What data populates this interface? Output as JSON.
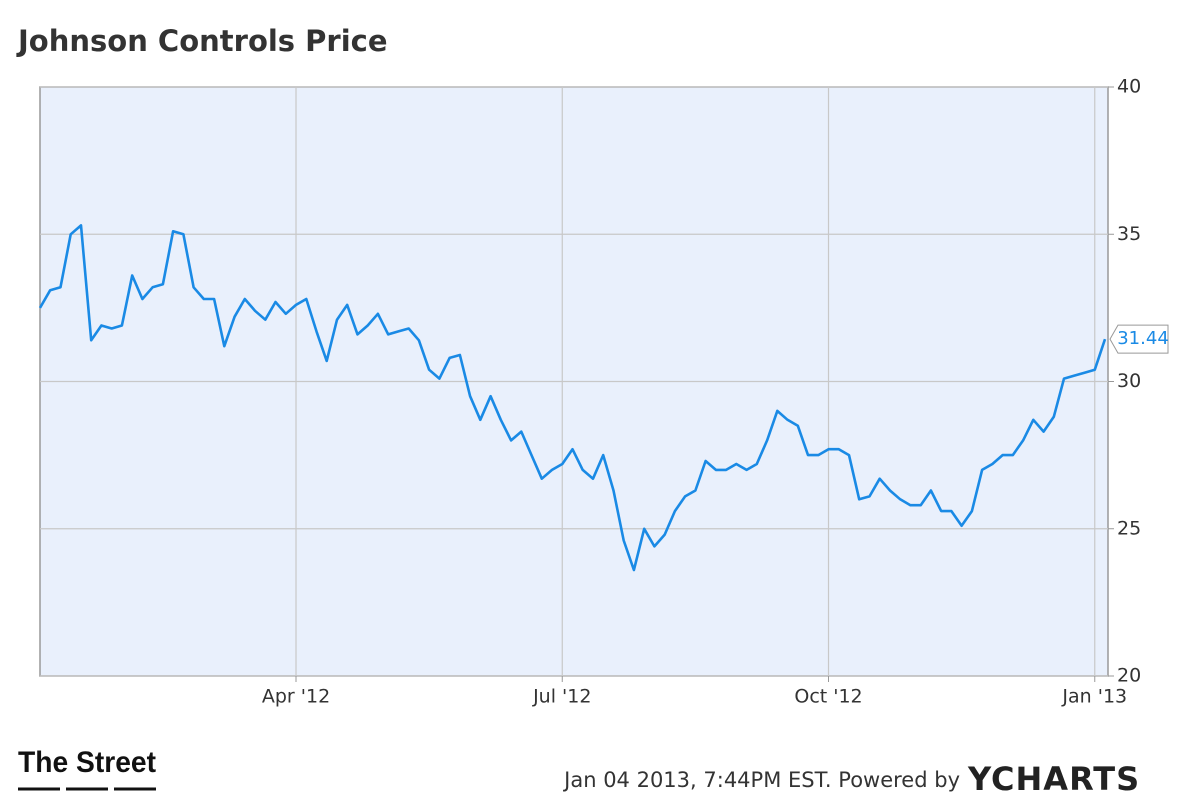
{
  "chart_data": {
    "type": "line",
    "title": "Johnson Controls Price",
    "categories": [
      null,
      null,
      null,
      null,
      null,
      null,
      null,
      null,
      null,
      null,
      null,
      null,
      null,
      null,
      null,
      null,
      null,
      null,
      null,
      null,
      null,
      null,
      null,
      null,
      null,
      "Apr '12",
      null,
      null,
      null,
      null,
      null,
      null,
      null,
      null,
      null,
      null,
      null,
      null,
      null,
      null,
      null,
      null,
      null,
      null,
      null,
      null,
      null,
      null,
      null,
      null,
      null,
      "Jul '12",
      null,
      null,
      null,
      null,
      null,
      null,
      null,
      null,
      null,
      null,
      null,
      null,
      null,
      null,
      null,
      null,
      null,
      null,
      null,
      null,
      null,
      null,
      null,
      null,
      null,
      "Oct '12",
      null,
      null,
      null,
      null,
      null,
      null,
      null,
      null,
      null,
      null,
      null,
      null,
      null,
      null,
      null,
      null,
      null,
      null,
      null,
      null,
      null,
      null,
      null,
      null,
      null,
      "Jan '13",
      null
    ],
    "series": [
      {
        "name": "Johnson Controls Price",
        "color": "#1a8ae5",
        "values": [
          32.5,
          33.1,
          33.2,
          35.0,
          35.3,
          31.4,
          31.9,
          31.8,
          31.9,
          33.6,
          32.8,
          33.2,
          33.3,
          35.1,
          35.0,
          33.2,
          32.8,
          32.8,
          31.2,
          32.2,
          32.8,
          32.4,
          32.1,
          32.7,
          32.3,
          32.6,
          32.8,
          31.7,
          30.7,
          32.1,
          32.6,
          31.6,
          31.9,
          32.3,
          31.6,
          31.7,
          31.8,
          31.4,
          30.4,
          30.1,
          30.8,
          30.9,
          29.5,
          28.7,
          29.5,
          28.7,
          28.0,
          28.3,
          27.5,
          26.7,
          27.0,
          27.2,
          27.7,
          27.0,
          26.7,
          27.5,
          26.3,
          24.6,
          23.6,
          25.0,
          24.4,
          24.8,
          25.6,
          26.1,
          26.3,
          27.3,
          27.0,
          27.0,
          27.2,
          27.0,
          27.2,
          28.0,
          29.0,
          28.7,
          28.5,
          27.5,
          27.5,
          27.7,
          27.7,
          27.5,
          26.0,
          26.1,
          26.7,
          26.3,
          26.0,
          25.8,
          25.8,
          26.3,
          25.6,
          25.6,
          25.1,
          25.6,
          27.0,
          27.2,
          27.5,
          27.5,
          28.0,
          28.7,
          28.3,
          28.8,
          30.1,
          30.2,
          30.3,
          30.4,
          31.44
        ]
      }
    ],
    "ylim": [
      20,
      40
    ],
    "yticks": [
      20,
      25,
      30,
      35,
      40
    ],
    "grid": true,
    "logo": "The Street",
    "footer": "Jan 04 2013, 7:44PM EST. Powered by",
    "brand": "YCHARTS"
  }
}
